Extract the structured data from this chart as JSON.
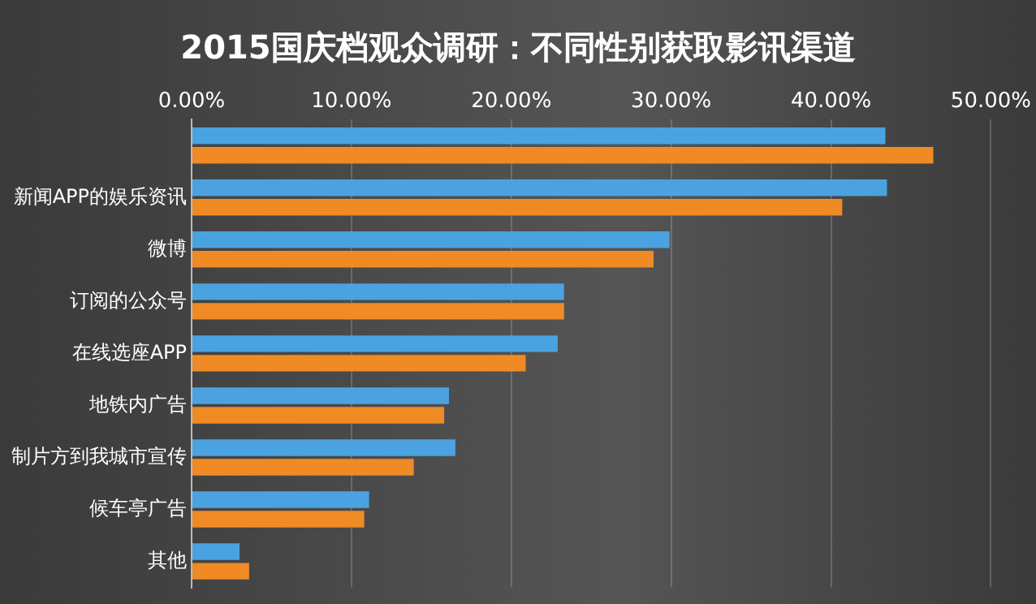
{
  "chart_data": {
    "type": "bar",
    "orientation": "horizontal",
    "title": "2015国庆档观众调研：不同性别获取影讯渠道",
    "categories": [
      null,
      "新闻APP的娱乐资讯",
      "微博",
      "订阅的公众号",
      "在线选座APP",
      "地铁内广告",
      "制片方到我城市宣传",
      "候车亭广告",
      "其他"
    ],
    "series": [
      {
        "color": "#4aa3e0",
        "values": [
          43.4,
          43.5,
          29.9,
          23.3,
          22.9,
          16.1,
          16.5,
          11.1,
          3.0
        ]
      },
      {
        "color": "#f08a24",
        "values": [
          46.4,
          40.7,
          28.9,
          23.3,
          20.9,
          15.8,
          13.9,
          10.8,
          3.6
        ]
      }
    ],
    "xlim": [
      0,
      50
    ],
    "xticks": [
      {
        "value": 0,
        "label": "0.00%"
      },
      {
        "value": 10,
        "label": "10.00%"
      },
      {
        "value": 20,
        "label": "20.00%"
      },
      {
        "value": 30,
        "label": "30.00%"
      },
      {
        "value": 40,
        "label": "40.00%"
      },
      {
        "value": 50,
        "label": "50.00%"
      }
    ],
    "grid": "x",
    "legend": false
  }
}
